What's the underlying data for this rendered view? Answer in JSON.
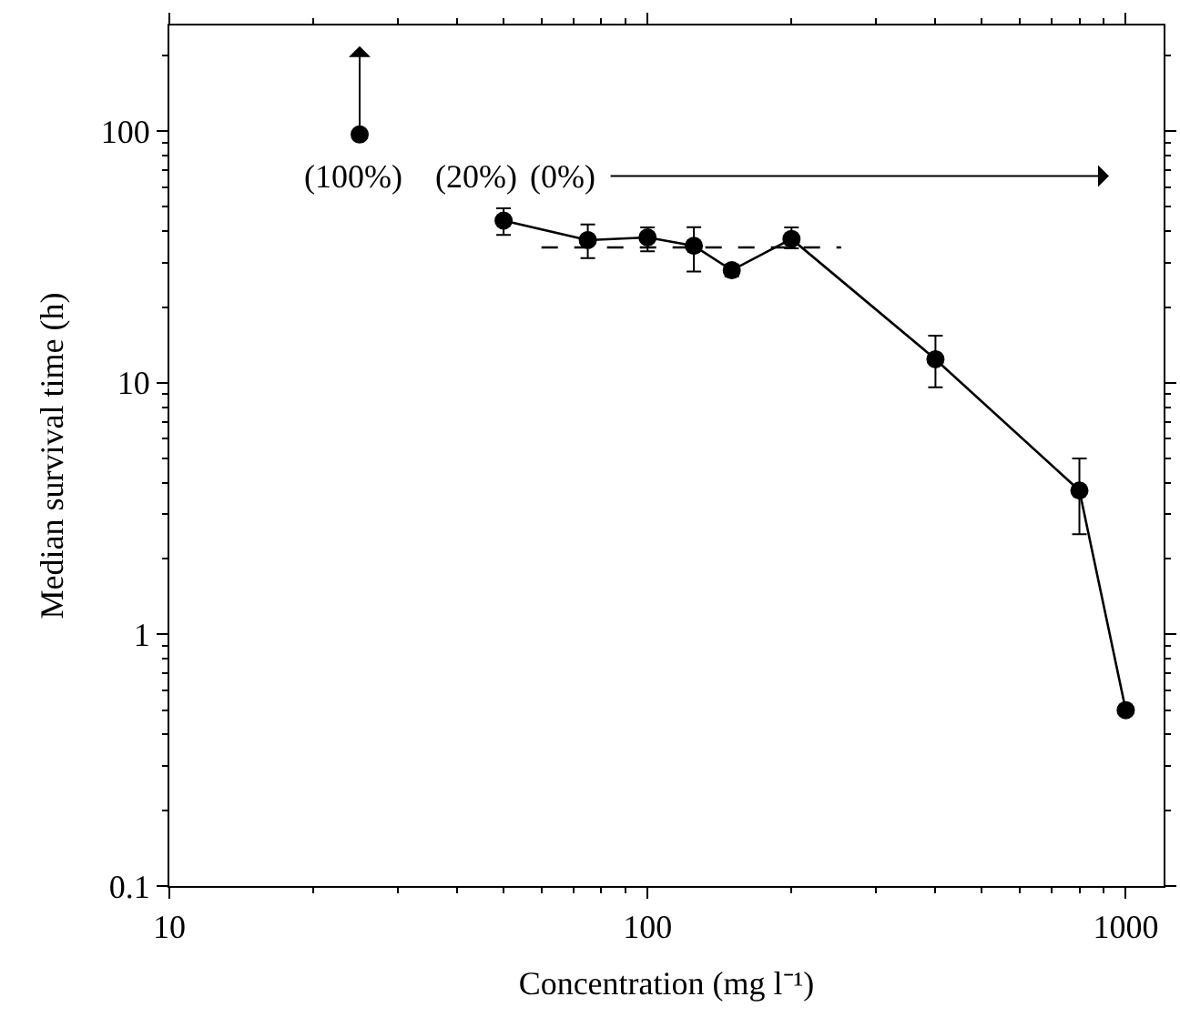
{
  "chart_data": {
    "type": "line",
    "xlabel": "Concentration (mg l⁻¹)",
    "ylabel": "Median survival time (h)",
    "log": "xy",
    "xlim": [
      10,
      1200
    ],
    "xticks": [
      10,
      100,
      1000
    ],
    "ylim": [
      0.1,
      263
    ],
    "yticks": [
      0.1,
      1,
      10,
      100
    ],
    "series": [
      {
        "type": "scatter",
        "color": "#000000",
        "marker": "circle",
        "x": [
          25
        ],
        "values": [
          97
        ]
      },
      {
        "color": "#000000",
        "marker": "circle",
        "line_style": "solid",
        "x": [
          50,
          75,
          100,
          125,
          150,
          200,
          400,
          800,
          1000
        ],
        "values": [
          44.1,
          36.9,
          37.8,
          35,
          28,
          37.3,
          12.4,
          3.73,
          0.5
        ],
        "errors": [
          [
            38.7,
            49.3
          ],
          [
            31.3,
            42.6
          ],
          [
            33.3,
            41.4
          ],
          [
            27.7,
            41.5
          ],
          [
            26.5,
            29.5
          ],
          [
            34.2,
            41.4
          ],
          [
            9.6,
            15.4
          ],
          [
            2.5,
            5.0
          ],
          null
        ]
      },
      {
        "type": "line",
        "color": "#000000",
        "marker": "none",
        "line_style": "dashed",
        "x": [
          60,
          254
        ],
        "values": [
          34.5,
          34.5
        ]
      }
    ],
    "annotations": [
      "(100%)",
      "(20%)",
      "(0%)"
    ]
  }
}
